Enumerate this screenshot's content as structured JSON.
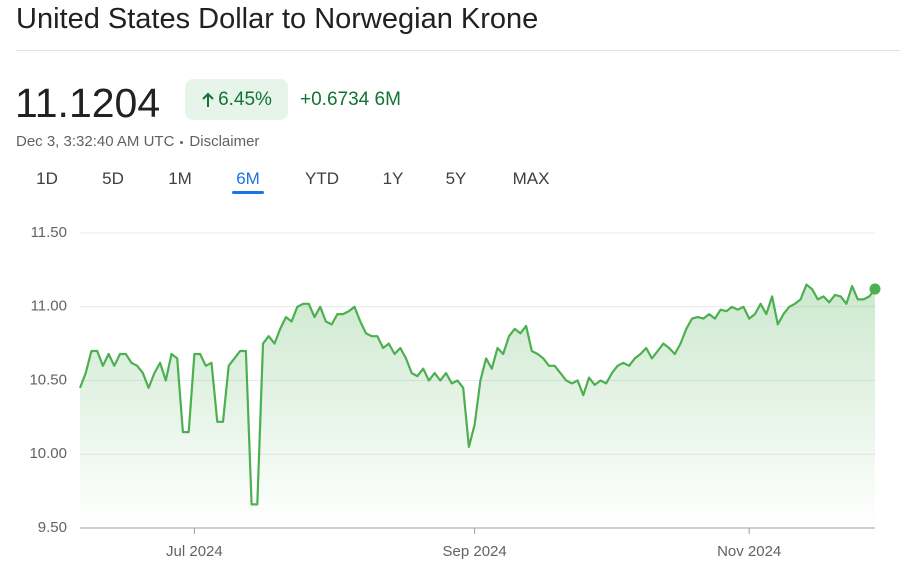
{
  "header": {
    "title": "United States Dollar to Norwegian Krone",
    "price": "11.1204",
    "change_percent": "6.45%",
    "change": "+0.6734",
    "change_period": "6M",
    "timestamp": "Dec 3, 3:32:40 AM UTC",
    "disclaimer": "Disclaimer"
  },
  "tabs": [
    "1D",
    "5D",
    "1M",
    "6M",
    "YTD",
    "1Y",
    "5Y",
    "MAX"
  ],
  "selected_tab": 3,
  "chart_data": {
    "type": "line",
    "color": "#4caf50",
    "grid": true,
    "values": [
      10.45,
      10.55,
      10.7,
      10.7,
      10.6,
      10.68,
      10.6,
      10.68,
      10.68,
      10.62,
      10.6,
      10.55,
      10.45,
      10.55,
      10.62,
      10.5,
      10.68,
      10.65,
      10.15,
      10.15,
      10.68,
      10.68,
      10.6,
      10.62,
      10.22,
      10.22,
      10.6,
      10.65,
      10.7,
      10.7,
      9.66,
      9.66,
      10.75,
      10.8,
      10.75,
      10.85,
      10.93,
      10.9,
      11.0,
      11.02,
      11.02,
      10.93,
      11.0,
      10.9,
      10.88,
      10.95,
      10.95,
      10.97,
      11.0,
      10.9,
      10.82,
      10.8,
      10.8,
      10.72,
      10.75,
      10.68,
      10.72,
      10.65,
      10.55,
      10.53,
      10.58,
      10.5,
      10.55,
      10.5,
      10.55,
      10.48,
      10.5,
      10.45,
      10.05,
      10.2,
      10.5,
      10.65,
      10.58,
      10.72,
      10.68,
      10.8,
      10.85,
      10.82,
      10.87,
      10.7,
      10.68,
      10.65,
      10.6,
      10.6,
      10.55,
      10.5,
      10.48,
      10.5,
      10.4,
      10.52,
      10.47,
      10.5,
      10.48,
      10.55,
      10.6,
      10.62,
      10.6,
      10.65,
      10.68,
      10.72,
      10.65,
      10.7,
      10.75,
      10.72,
      10.68,
      10.75,
      10.85,
      10.92,
      10.93,
      10.92,
      10.95,
      10.92,
      10.98,
      10.97,
      11.0,
      10.98,
      11.0,
      10.92,
      10.95,
      11.02,
      10.95,
      11.07,
      10.88,
      10.95,
      11.0,
      11.02,
      11.05,
      11.15,
      11.12,
      11.05,
      11.07,
      11.03,
      11.08,
      11.07,
      11.02,
      11.14,
      11.05,
      11.05,
      11.07,
      11.12
    ],
    "xlim": [
      0,
      139
    ],
    "xticks": [
      {
        "value": 20,
        "label": "Jul 2024"
      },
      {
        "value": 69,
        "label": "Sep 2024"
      },
      {
        "value": 117,
        "label": "Nov 2024"
      }
    ],
    "ylim": [
      9.5,
      11.5
    ],
    "yticks": [
      {
        "value": 9.5,
        "label": "9.50"
      },
      {
        "value": 10,
        "label": "10.00"
      },
      {
        "value": 10.5,
        "label": "10.50"
      },
      {
        "value": 11,
        "label": "11.00"
      },
      {
        "value": 11.5,
        "label": "11.50"
      }
    ]
  }
}
